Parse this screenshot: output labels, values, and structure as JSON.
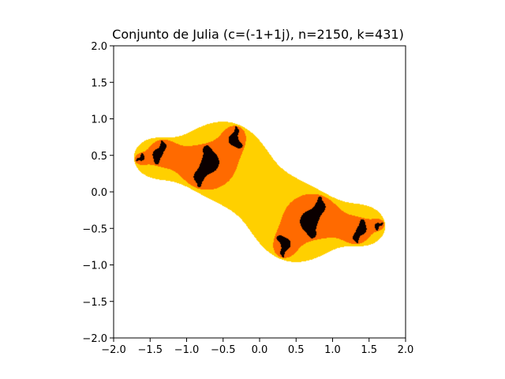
{
  "chart_data": {
    "type": "heatmap",
    "title": "Conjunto de Julia (c=(-1+1j), n=2150, k=431)",
    "xlabel": "",
    "ylabel": "",
    "xlim": [
      -2.0,
      2.0
    ],
    "ylim": [
      -2.0,
      2.0
    ],
    "x_ticks": [
      "−2.0",
      "−1.5",
      "−1.0",
      "−0.5",
      "0.0",
      "0.5",
      "1.0",
      "1.5",
      "2.0"
    ],
    "y_ticks": [
      "−2.0",
      "−1.5",
      "−1.0",
      "−0.5",
      "0.0",
      "0.5",
      "1.0",
      "1.5",
      "2.0"
    ],
    "x_tick_values": [
      -2.0,
      -1.5,
      -1.0,
      -0.5,
      0.0,
      0.5,
      1.0,
      1.5,
      2.0
    ],
    "y_tick_values": [
      -2.0,
      -1.5,
      -1.0,
      -0.5,
      0.0,
      0.5,
      1.0,
      1.5,
      2.0
    ],
    "c_real": -1,
    "c_imag": 1,
    "grid": false,
    "colormap": "hot",
    "colors": {
      "background": "#0b0000",
      "interior": "#ffffff",
      "edge_hot": "#ff6a00",
      "edge_yellow": "#ffd000"
    }
  }
}
